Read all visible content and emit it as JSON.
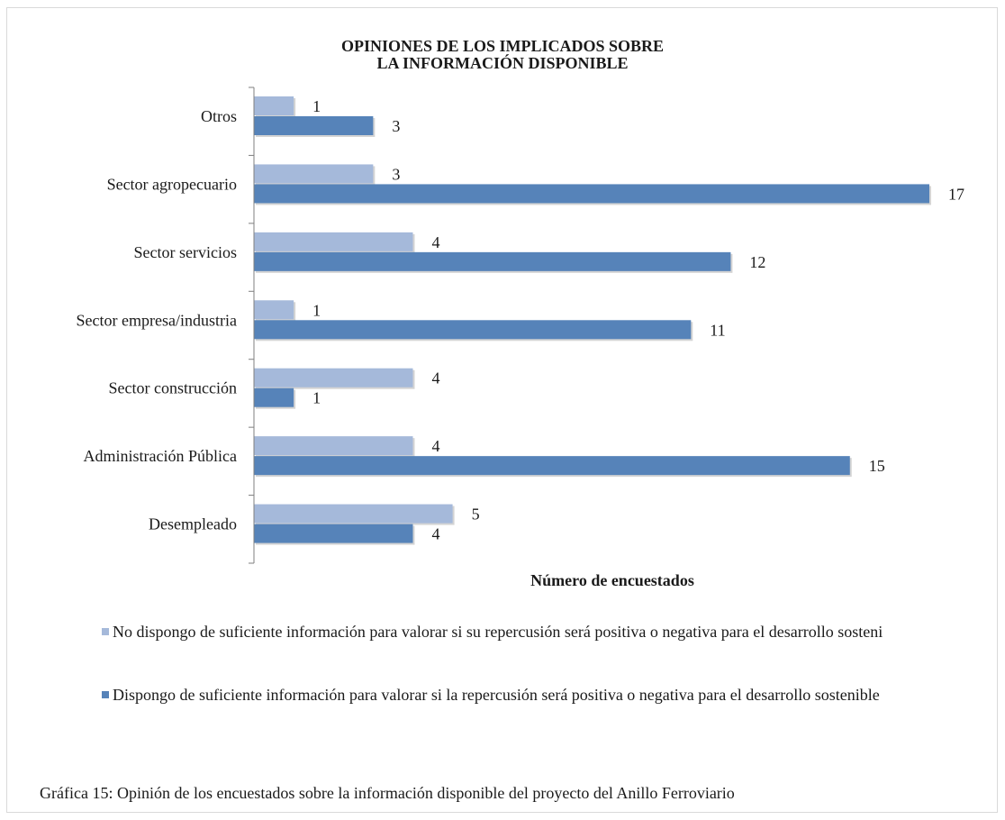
{
  "colors": {
    "series_light": "#a5b9da",
    "series_dark": "#5683b9",
    "axis": "#7f7f7f",
    "frame": "#d9d9d9"
  },
  "caption": "Gráfica 15: Opinión de los encuestados sobre la información disponible del proyecto del Anillo Ferroviario",
  "chart_data": {
    "type": "bar",
    "orientation": "horizontal",
    "title_lines": [
      "OPINIONES DE LOS IMPLICADOS SOBRE",
      "LA INFORMACIÓN DISPONIBLE"
    ],
    "xlabel": "Número de encuestados",
    "ylabel": "",
    "categories": [
      "Otros",
      "Sector agropecuario",
      "Sector servicios",
      "Sector empresa/industria",
      "Sector construcción",
      "Administración Pública",
      "Desempleado"
    ],
    "series": [
      {
        "name": "No dispongo de suficiente información para valorar si su repercusión será positiva o negativa para el desarrollo sosteni",
        "values": [
          1,
          3,
          4,
          1,
          4,
          4,
          5
        ],
        "color": "#a5b9da"
      },
      {
        "name": "Dispongo de suficiente información para valorar si la repercusión será positiva o negativa para el desarrollo sostenible",
        "values": [
          3,
          17,
          12,
          11,
          1,
          15,
          4
        ],
        "color": "#5683b9"
      }
    ],
    "xlim": [
      0,
      17
    ],
    "grid": false,
    "data_labels": true,
    "legend_position": "bottom"
  }
}
